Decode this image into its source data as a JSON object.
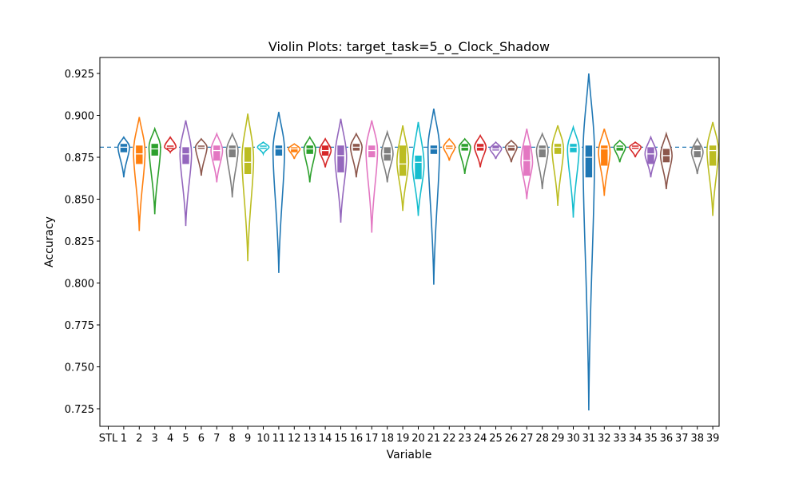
{
  "chart_data": {
    "type": "violin",
    "title": "Violin Plots: target_task=5_o_Clock_Shadow",
    "xlabel": "Variable",
    "ylabel": "Accuracy",
    "ylim": [
      0.72,
      0.93
    ],
    "yticks": [
      "0.725",
      "0.750",
      "0.775",
      "0.800",
      "0.825",
      "0.850",
      "0.875",
      "0.900",
      "0.925"
    ],
    "baseline": {
      "label": "STL",
      "value": 0.881,
      "style": "dashed"
    },
    "palette": [
      "#1f77b4",
      "#ff7f0e",
      "#2ca02c",
      "#d62728",
      "#9467bd",
      "#8c564b",
      "#e377c2",
      "#7f7f7f",
      "#bcbd22",
      "#17becf"
    ],
    "categories": [
      "STL",
      "1",
      "2",
      "3",
      "4",
      "5",
      "6",
      "7",
      "8",
      "9",
      "10",
      "11",
      "12",
      "13",
      "14",
      "15",
      "16",
      "17",
      "18",
      "19",
      "20",
      "21",
      "22",
      "23",
      "24",
      "25",
      "26",
      "27",
      "28",
      "29",
      "30",
      "31",
      "32",
      "33",
      "34",
      "35",
      "36",
      "37",
      "38",
      "39"
    ],
    "violins": [
      {
        "label": "1",
        "min": 0.863,
        "max": 0.887,
        "mode": 0.881,
        "width": 0.85,
        "q1": 0.878,
        "median": 0.881,
        "q3": 0.883
      },
      {
        "label": "2",
        "min": 0.831,
        "max": 0.899,
        "mode": 0.878,
        "width": 0.85,
        "q1": 0.871,
        "median": 0.877,
        "q3": 0.882
      },
      {
        "label": "3",
        "min": 0.841,
        "max": 0.892,
        "mode": 0.881,
        "width": 0.85,
        "q1": 0.876,
        "median": 0.88,
        "q3": 0.883
      },
      {
        "label": "4",
        "min": 0.878,
        "max": 0.887,
        "mode": 0.881,
        "width": 0.85,
        "q1": 0.88,
        "median": 0.881,
        "q3": 0.882
      },
      {
        "label": "5",
        "min": 0.834,
        "max": 0.897,
        "mode": 0.877,
        "width": 0.85,
        "q1": 0.871,
        "median": 0.877,
        "q3": 0.881
      },
      {
        "label": "6",
        "min": 0.864,
        "max": 0.886,
        "mode": 0.881,
        "width": 0.85,
        "q1": 0.88,
        "median": 0.881,
        "q3": 0.882
      },
      {
        "label": "7",
        "min": 0.86,
        "max": 0.889,
        "mode": 0.879,
        "width": 0.85,
        "q1": 0.873,
        "median": 0.879,
        "q3": 0.882
      },
      {
        "label": "8",
        "min": 0.851,
        "max": 0.889,
        "mode": 0.879,
        "width": 0.85,
        "q1": 0.875,
        "median": 0.88,
        "q3": 0.882
      },
      {
        "label": "9",
        "min": 0.813,
        "max": 0.901,
        "mode": 0.874,
        "width": 0.85,
        "q1": 0.865,
        "median": 0.872,
        "q3": 0.881
      },
      {
        "label": "10",
        "min": 0.877,
        "max": 0.884,
        "mode": 0.881,
        "width": 0.85,
        "q1": 0.88,
        "median": 0.881,
        "q3": 0.882
      },
      {
        "label": "11",
        "min": 0.806,
        "max": 0.902,
        "mode": 0.879,
        "width": 0.85,
        "q1": 0.876,
        "median": 0.88,
        "q3": 0.882
      },
      {
        "label": "12",
        "min": 0.874,
        "max": 0.883,
        "mode": 0.88,
        "width": 0.85,
        "q1": 0.878,
        "median": 0.88,
        "q3": 0.881
      },
      {
        "label": "13",
        "min": 0.86,
        "max": 0.887,
        "mode": 0.88,
        "width": 0.85,
        "q1": 0.877,
        "median": 0.88,
        "q3": 0.882
      },
      {
        "label": "14",
        "min": 0.869,
        "max": 0.886,
        "mode": 0.879,
        "width": 0.85,
        "q1": 0.876,
        "median": 0.879,
        "q3": 0.882
      },
      {
        "label": "15",
        "min": 0.836,
        "max": 0.898,
        "mode": 0.875,
        "width": 0.85,
        "q1": 0.866,
        "median": 0.876,
        "q3": 0.882
      },
      {
        "label": "16",
        "min": 0.863,
        "max": 0.889,
        "mode": 0.881,
        "width": 0.85,
        "q1": 0.879,
        "median": 0.881,
        "q3": 0.883
      },
      {
        "label": "17",
        "min": 0.83,
        "max": 0.897,
        "mode": 0.879,
        "width": 0.85,
        "q1": 0.875,
        "median": 0.879,
        "q3": 0.882
      },
      {
        "label": "18",
        "min": 0.86,
        "max": 0.89,
        "mode": 0.877,
        "width": 0.85,
        "q1": 0.873,
        "median": 0.877,
        "q3": 0.881
      },
      {
        "label": "19",
        "min": 0.843,
        "max": 0.894,
        "mode": 0.872,
        "width": 0.85,
        "q1": 0.864,
        "median": 0.871,
        "q3": 0.882
      },
      {
        "label": "20",
        "min": 0.84,
        "max": 0.896,
        "mode": 0.87,
        "width": 0.85,
        "q1": 0.862,
        "median": 0.872,
        "q3": 0.876
      },
      {
        "label": "21",
        "min": 0.799,
        "max": 0.904,
        "mode": 0.88,
        "width": 0.85,
        "q1": 0.877,
        "median": 0.88,
        "q3": 0.882
      },
      {
        "label": "22",
        "min": 0.873,
        "max": 0.886,
        "mode": 0.881,
        "width": 0.85,
        "q1": 0.88,
        "median": 0.881,
        "q3": 0.882
      },
      {
        "label": "23",
        "min": 0.865,
        "max": 0.886,
        "mode": 0.881,
        "width": 0.85,
        "q1": 0.879,
        "median": 0.881,
        "q3": 0.883
      },
      {
        "label": "24",
        "min": 0.869,
        "max": 0.888,
        "mode": 0.881,
        "width": 0.85,
        "q1": 0.879,
        "median": 0.881,
        "q3": 0.883
      },
      {
        "label": "25",
        "min": 0.874,
        "max": 0.884,
        "mode": 0.88,
        "width": 0.85,
        "q1": 0.879,
        "median": 0.88,
        "q3": 0.882
      },
      {
        "label": "26",
        "min": 0.872,
        "max": 0.885,
        "mode": 0.881,
        "width": 0.85,
        "q1": 0.879,
        "median": 0.881,
        "q3": 0.882
      },
      {
        "label": "27",
        "min": 0.85,
        "max": 0.892,
        "mode": 0.872,
        "width": 0.85,
        "q1": 0.864,
        "median": 0.873,
        "q3": 0.882
      },
      {
        "label": "28",
        "min": 0.856,
        "max": 0.889,
        "mode": 0.879,
        "width": 0.85,
        "q1": 0.875,
        "median": 0.88,
        "q3": 0.882
      },
      {
        "label": "29",
        "min": 0.846,
        "max": 0.894,
        "mode": 0.88,
        "width": 0.85,
        "q1": 0.877,
        "median": 0.881,
        "q3": 0.883
      },
      {
        "label": "30",
        "min": 0.839,
        "max": 0.893,
        "mode": 0.88,
        "width": 0.85,
        "q1": 0.878,
        "median": 0.881,
        "q3": 0.883
      },
      {
        "label": "31",
        "min": 0.724,
        "max": 0.925,
        "mode": 0.876,
        "width": 0.85,
        "q1": 0.863,
        "median": 0.875,
        "q3": 0.882
      },
      {
        "label": "32",
        "min": 0.852,
        "max": 0.892,
        "mode": 0.878,
        "width": 0.85,
        "q1": 0.87,
        "median": 0.88,
        "q3": 0.882
      },
      {
        "label": "33",
        "min": 0.872,
        "max": 0.885,
        "mode": 0.881,
        "width": 0.85,
        "q1": 0.879,
        "median": 0.881,
        "q3": 0.882
      },
      {
        "label": "34",
        "min": 0.875,
        "max": 0.884,
        "mode": 0.881,
        "width": 0.85,
        "q1": 0.88,
        "median": 0.881,
        "q3": 0.882
      },
      {
        "label": "35",
        "min": 0.863,
        "max": 0.887,
        "mode": 0.877,
        "width": 0.85,
        "q1": 0.871,
        "median": 0.877,
        "q3": 0.881
      },
      {
        "label": "36",
        "min": 0.856,
        "max": 0.889,
        "mode": 0.876,
        "width": 0.85,
        "q1": 0.872,
        "median": 0.876,
        "q3": 0.88
      },
      {
        "label": "38",
        "min": 0.865,
        "max": 0.886,
        "mode": 0.878,
        "width": 0.85,
        "q1": 0.875,
        "median": 0.879,
        "q3": 0.882
      },
      {
        "label": "39",
        "min": 0.84,
        "max": 0.896,
        "mode": 0.879,
        "width": 0.85,
        "q1": 0.87,
        "median": 0.879,
        "q3": 0.882
      }
    ]
  }
}
